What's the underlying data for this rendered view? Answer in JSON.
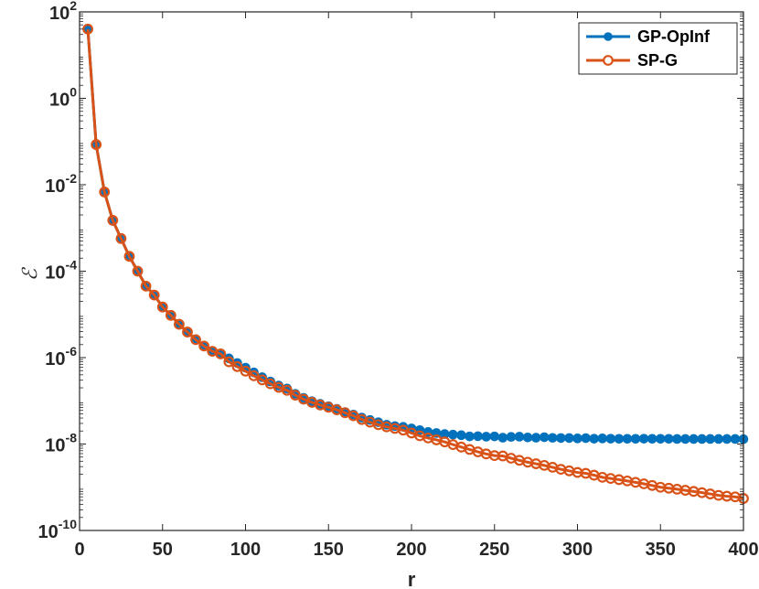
{
  "chart_data": {
    "type": "line",
    "title": "",
    "xlabel": "r",
    "ylabel": "ℰ",
    "xlim": [
      0,
      400
    ],
    "ylim": [
      1e-10,
      100
    ],
    "yscale": "log",
    "x_ticks": [
      0,
      50,
      100,
      150,
      200,
      250,
      300,
      350,
      400
    ],
    "y_tick_exponents": [
      2,
      0,
      -2,
      -4,
      -6,
      -8,
      -10
    ],
    "y_tick_base": "10",
    "grid": false,
    "legend_position": "top-right",
    "colors": {
      "gp_opinf": "#0072BD",
      "sp_g": "#D95319"
    },
    "x": [
      5,
      10,
      15,
      20,
      25,
      30,
      35,
      40,
      45,
      50,
      55,
      60,
      65,
      70,
      75,
      80,
      85,
      90,
      95,
      100,
      105,
      110,
      115,
      120,
      125,
      130,
      135,
      140,
      145,
      150,
      155,
      160,
      165,
      170,
      175,
      180,
      185,
      190,
      195,
      200,
      205,
      210,
      215,
      220,
      225,
      230,
      235,
      240,
      245,
      250,
      255,
      260,
      265,
      270,
      275,
      280,
      285,
      290,
      295,
      300,
      305,
      310,
      315,
      320,
      325,
      330,
      335,
      340,
      345,
      350,
      355,
      360,
      365,
      370,
      375,
      380,
      385,
      390,
      395,
      400
    ],
    "series": [
      {
        "name": "GP-OpInf",
        "marker": "filled-circle",
        "values": [
          40,
          0.085,
          0.0068,
          0.0015,
          0.00057,
          0.00022,
          0.0001,
          4.5e-05,
          2.8e-05,
          1.48e-05,
          9.5e-06,
          5.9e-06,
          3.9e-06,
          2.6e-06,
          1.85e-06,
          1.4e-06,
          1.22e-06,
          9.6e-07,
          7.5e-07,
          5.85e-07,
          4.55e-07,
          3.52e-07,
          2.8e-07,
          2.25e-07,
          1.92e-07,
          1.45e-07,
          1.17e-07,
          9.8e-08,
          8.5e-08,
          7.5e-08,
          6.5e-08,
          5.5e-08,
          4.8e-08,
          4.1e-08,
          3.6e-08,
          3.2e-08,
          2.8e-08,
          2.6e-08,
          2.5e-08,
          2.3e-08,
          2.1e-08,
          1.9e-08,
          1.8e-08,
          1.7e-08,
          1.65e-08,
          1.6e-08,
          1.5e-08,
          1.52e-08,
          1.48e-08,
          1.5e-08,
          1.4e-08,
          1.46e-08,
          1.48e-08,
          1.42e-08,
          1.4e-08,
          1.44e-08,
          1.39e-08,
          1.38e-08,
          1.38e-08,
          1.35e-08,
          1.37e-08,
          1.33e-08,
          1.35e-08,
          1.33e-08,
          1.32e-08,
          1.32e-08,
          1.32e-08,
          1.33e-08,
          1.32e-08,
          1.32e-08,
          1.32e-08,
          1.31e-08,
          1.31e-08,
          1.31e-08,
          1.31e-08,
          1.31e-08,
          1.31e-08,
          1.31e-08,
          1.31e-08,
          1.3e-08
        ]
      },
      {
        "name": "SP-G",
        "marker": "open-circle",
        "values": [
          40,
          0.085,
          0.0068,
          0.0015,
          0.00057,
          0.00022,
          0.0001,
          4.5e-05,
          2.8e-05,
          1.48e-05,
          9.5e-06,
          5.9e-06,
          3.9e-06,
          2.6e-06,
          1.85e-06,
          1.4e-06,
          1.22e-06,
          8e-07,
          6.2e-07,
          4.85e-07,
          3.8e-07,
          3.05e-07,
          2.48e-07,
          2.05e-07,
          1.75e-07,
          1.35e-07,
          1.09e-07,
          9.2e-08,
          8e-08,
          7.1e-08,
          6.2e-08,
          5.3e-08,
          4.5e-08,
          3.7e-08,
          3.2e-08,
          2.8e-08,
          2.5e-08,
          2.3e-08,
          2.1e-08,
          1.8e-08,
          1.55e-08,
          1.38e-08,
          1.25e-08,
          1.12e-08,
          9.7e-09,
          8.5e-09,
          7.5e-09,
          6.6e-09,
          5.9e-09,
          5.4e-09,
          5.3e-09,
          4.7e-09,
          4.2e-09,
          3.8e-09,
          3.5e-09,
          3.2e-09,
          2.9e-09,
          2.6e-09,
          2.4e-09,
          2.2e-09,
          2.1e-09,
          1.9e-09,
          1.7e-09,
          1.6e-09,
          1.5e-09,
          1.4e-09,
          1.3e-09,
          1.2e-09,
          1.1e-09,
          1e-09,
          9.5e-10,
          9e-10,
          8.5e-10,
          8e-10,
          7.5e-10,
          7e-10,
          6.5e-10,
          6.2e-10,
          6e-10,
          5.5e-10
        ]
      }
    ]
  }
}
